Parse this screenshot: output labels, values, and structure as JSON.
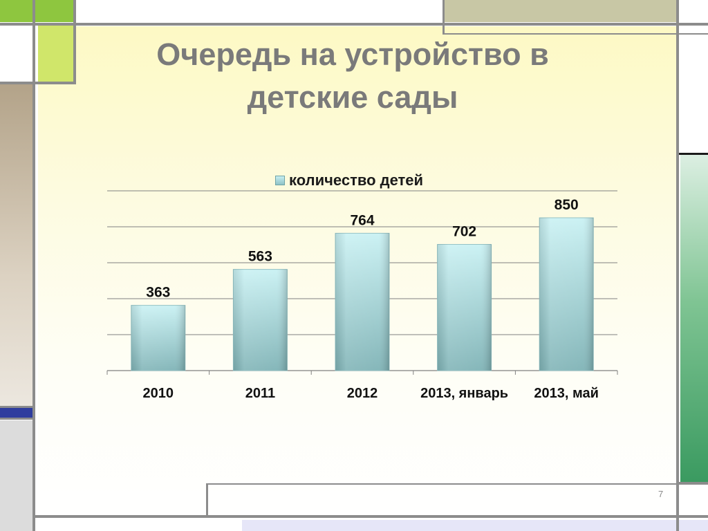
{
  "slide": {
    "title_line1": "Очередь на устройство в",
    "title_line2": "детские сады",
    "page_number": "7"
  },
  "colors": {
    "bar_top": "#c9f1f3",
    "bar_bottom": "#7fb3b6",
    "grid": "#808080",
    "frame_green": "#cde56a",
    "frame_olive": "#c8c7a5",
    "frame_tan": "#b3a389",
    "frame_blue": "#2f3d9e",
    "frame_sea_green": "#3a9a60"
  },
  "chart_data": {
    "type": "bar",
    "title": "",
    "categories": [
      "2010",
      "2011",
      "2012",
      "2013, январь",
      "2013, май"
    ],
    "series": [
      {
        "name": "количество детей",
        "values": [
          363,
          563,
          764,
          702,
          850
        ]
      }
    ],
    "data_labels": [
      "363",
      "563",
      "764",
      "702",
      "850"
    ],
    "ylim": [
      0,
      1000
    ],
    "y_gridlines": [
      0,
      200,
      400,
      600,
      800,
      1000
    ],
    "grid": true,
    "legend_position": "top",
    "xlabel": "",
    "ylabel": ""
  }
}
